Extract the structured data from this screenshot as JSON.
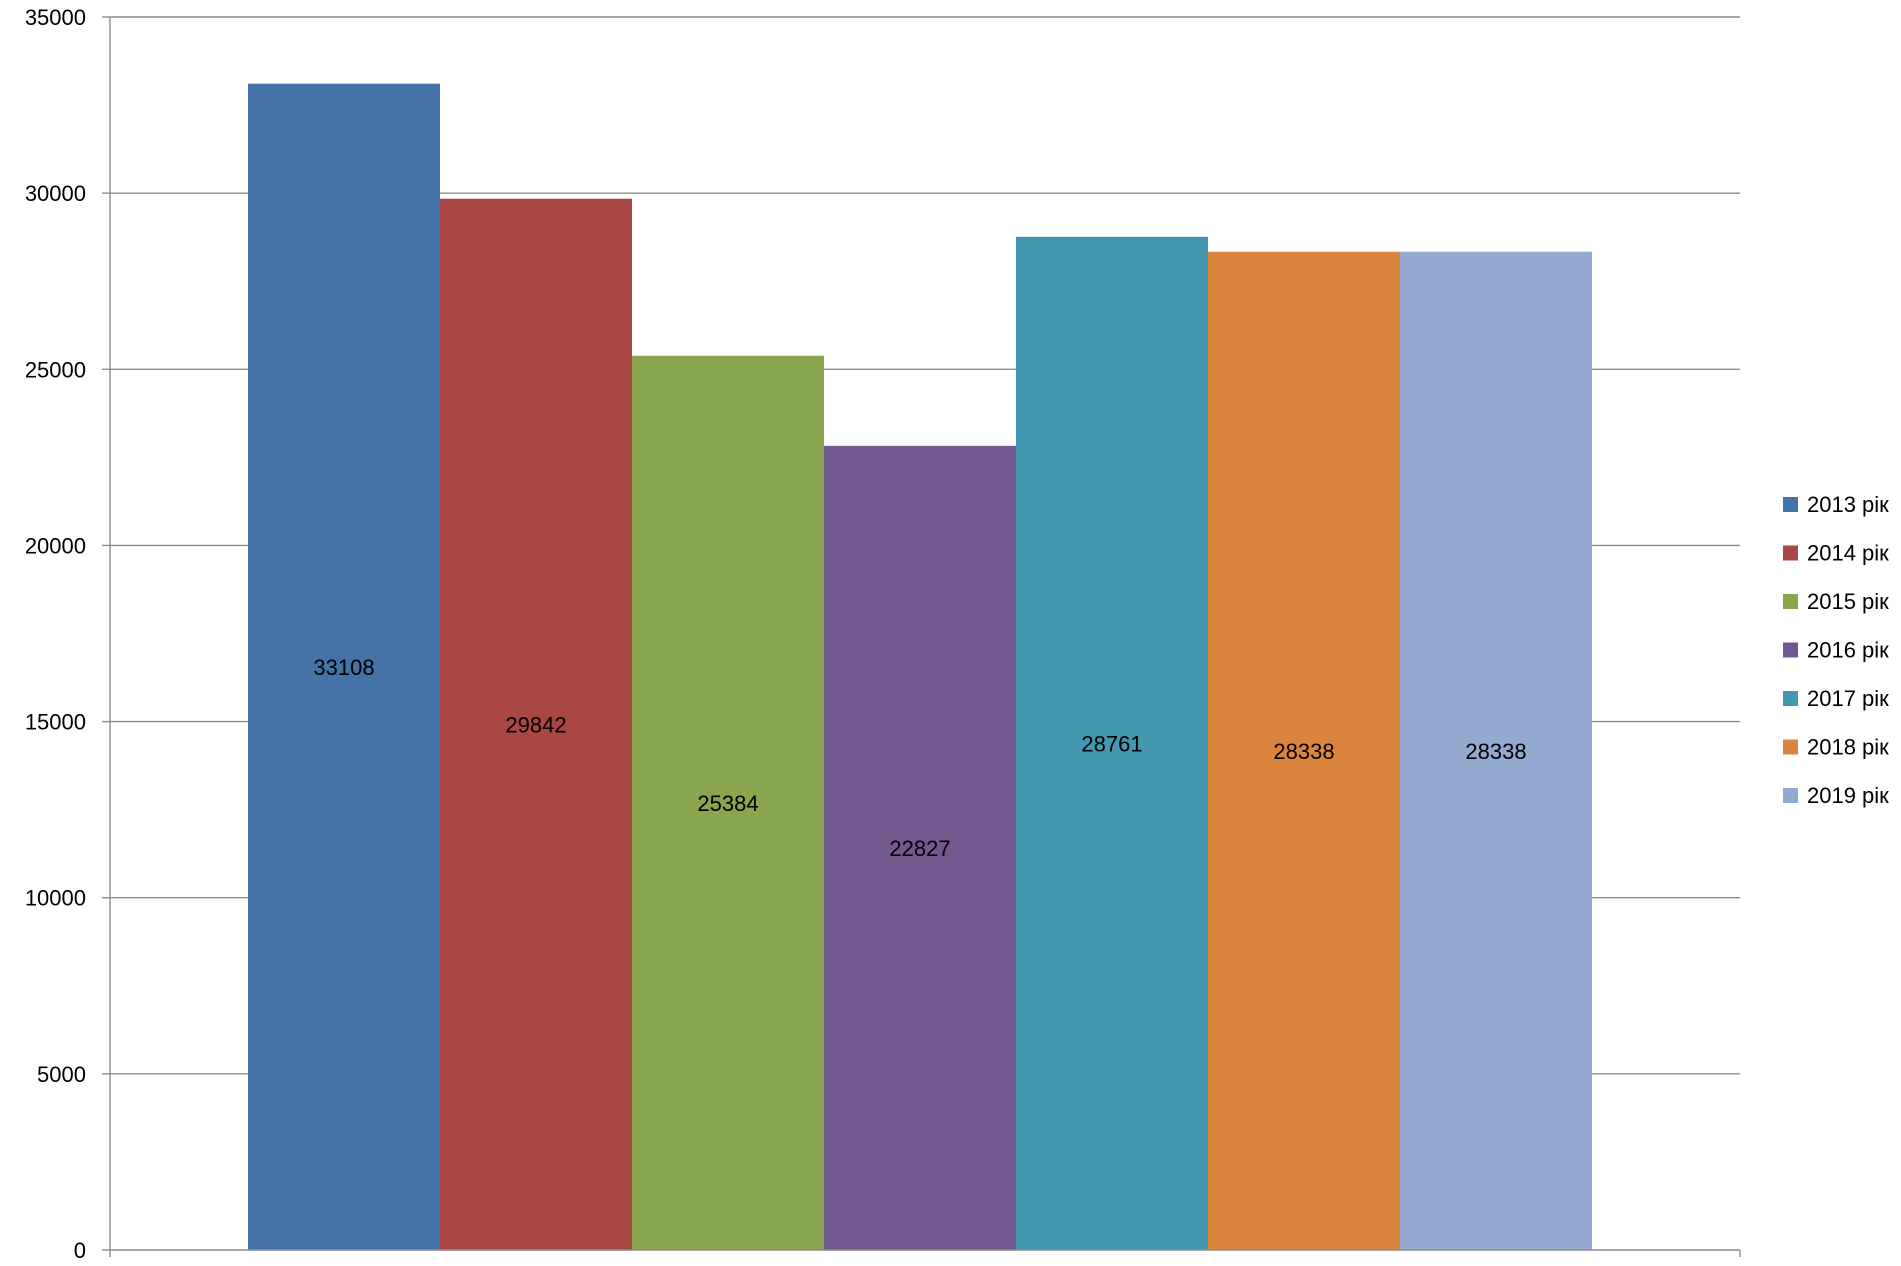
{
  "chart_data": {
    "type": "bar",
    "title": "",
    "xlabel": "",
    "ylabel": "",
    "ylim": [
      0,
      35000
    ],
    "yticks": [
      0,
      5000,
      10000,
      15000,
      20000,
      25000,
      30000,
      35000
    ],
    "grid": true,
    "legend_position": "right",
    "series": [
      {
        "name": "2013 рік",
        "values": [
          33108
        ],
        "color": "#4572A7",
        "label": "33108"
      },
      {
        "name": "2014 рік",
        "values": [
          29842
        ],
        "color": "#AA4643",
        "label": "29842"
      },
      {
        "name": "2015 рік",
        "values": [
          25384
        ],
        "color": "#89A54E",
        "label": "25384"
      },
      {
        "name": "2016 рік",
        "values": [
          22827
        ],
        "color": "#71588F",
        "label": "22827"
      },
      {
        "name": "2017 рік",
        "values": [
          28761
        ],
        "color": "#4198AF",
        "label": "28761"
      },
      {
        "name": "2018 рік",
        "values": [
          28338
        ],
        "color": "#DB843D",
        "label": "28338"
      },
      {
        "name": "2019 рік",
        "values": [
          28338
        ],
        "color": "#93A9CF",
        "label": "28338"
      }
    ]
  }
}
